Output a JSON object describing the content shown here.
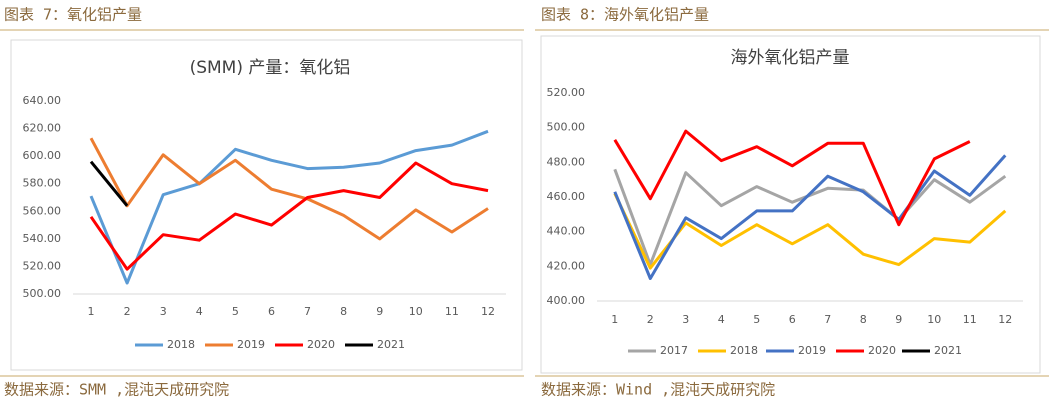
{
  "chart_data": [
    {
      "type": "line",
      "caption": "图表 7：氧化铝产量",
      "source": "数据来源：SMM ,混沌天成研究院",
      "title": "(SMM) 产量：氧化铝",
      "categories": [
        "1",
        "2",
        "3",
        "4",
        "5",
        "6",
        "7",
        "8",
        "9",
        "10",
        "11",
        "12"
      ],
      "series": [
        {
          "name": "2018",
          "color": "#5b9bd5",
          "values": [
            571,
            508,
            572,
            580,
            605,
            597,
            591,
            592,
            595,
            604,
            608,
            618
          ]
        },
        {
          "name": "2019",
          "color": "#ed7d31",
          "values": [
            613,
            564,
            601,
            580,
            597,
            576,
            569,
            557,
            540,
            561,
            545,
            562
          ]
        },
        {
          "name": "2020",
          "color": "#ff0000",
          "values": [
            556,
            518,
            543,
            539,
            558,
            550,
            570,
            575,
            570,
            595,
            580,
            575
          ]
        },
        {
          "name": "2021",
          "color": "#000000",
          "values": [
            596,
            564,
            null,
            null,
            null,
            null,
            null,
            null,
            null,
            null,
            null,
            null
          ]
        }
      ],
      "ylim": [
        500,
        640
      ],
      "yticks": [
        {
          "value": 500,
          "label": "500.00"
        },
        {
          "value": 520,
          "label": "520.00"
        },
        {
          "value": 540,
          "label": "540.00"
        },
        {
          "value": 560,
          "label": "560.00"
        },
        {
          "value": 580,
          "label": "580.00"
        },
        {
          "value": 600,
          "label": "600.00"
        },
        {
          "value": 620,
          "label": "620.00"
        },
        {
          "value": 640,
          "label": "640.00"
        }
      ],
      "grid": false,
      "legend": "bottom"
    },
    {
      "type": "line",
      "caption": "图表 8：海外氧化铝产量",
      "source": "数据来源：Wind ,混沌天成研究院",
      "title": "海外氧化铝产量",
      "categories": [
        "1",
        "2",
        "3",
        "4",
        "5",
        "6",
        "7",
        "8",
        "9",
        "10",
        "11",
        "12"
      ],
      "series": [
        {
          "name": "2017",
          "color": "#a5a5a5",
          "values": [
            476,
            421,
            474,
            455,
            466,
            457,
            465,
            464,
            447,
            470,
            457,
            472
          ]
        },
        {
          "name": "2018",
          "color": "#ffc000",
          "values": [
            462,
            419,
            445,
            432,
            444,
            433,
            444,
            427,
            421,
            436,
            434,
            452
          ]
        },
        {
          "name": "2019",
          "color": "#4472c4",
          "values": [
            463,
            413,
            448,
            436,
            452,
            452,
            472,
            463,
            447,
            475,
            461,
            484
          ]
        },
        {
          "name": "2020",
          "color": "#ff0000",
          "values": [
            493,
            459,
            498,
            481,
            489,
            478,
            491,
            491,
            444,
            482,
            492,
            null
          ]
        },
        {
          "name": "2021",
          "color": "#000000",
          "values": [
            null,
            null,
            null,
            null,
            null,
            null,
            null,
            null,
            null,
            null,
            null,
            null
          ]
        }
      ],
      "ylim": [
        400,
        520
      ],
      "yticks": [
        {
          "value": 400,
          "label": "400.00"
        },
        {
          "value": 420,
          "label": "420.00"
        },
        {
          "value": 440,
          "label": "440.00"
        },
        {
          "value": 460,
          "label": "460.00"
        },
        {
          "value": 480,
          "label": "480.00"
        },
        {
          "value": 500,
          "label": "500.00"
        },
        {
          "value": 520,
          "label": "520.00"
        }
      ],
      "grid": false,
      "legend": "bottom"
    }
  ]
}
